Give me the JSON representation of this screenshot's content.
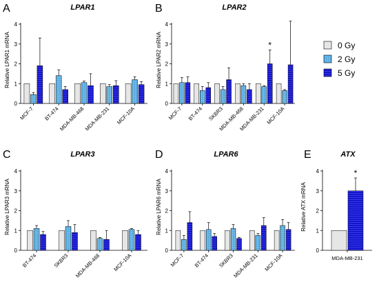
{
  "colors": {
    "c0": "#e6e6e6",
    "c2": "#5aaee2",
    "c5": "#1414c8",
    "axis": "#000000"
  },
  "legend": {
    "items": [
      {
        "label": "0 Gy",
        "color": "#e6e6e6"
      },
      {
        "label": "2 Gy",
        "color": "#5aaee2"
      },
      {
        "label": "5 Gy",
        "color": "#1414c8"
      }
    ]
  },
  "chart_data": [
    {
      "type": "bar",
      "letter": "A",
      "title": "LPAR1",
      "ylabel": "Relative LPAR1 mRNA",
      "ylim": [
        0,
        4
      ],
      "yticks": [
        0,
        1,
        2,
        3,
        4
      ],
      "categories": [
        "MCF-7",
        "BT-474",
        "MDA-MB-468",
        "MDA-MB-231",
        "MCF-10A"
      ],
      "series": [
        {
          "name": "0 Gy",
          "values": [
            1.0,
            1.0,
            1.0,
            1.0,
            1.0
          ],
          "errors": [
            0,
            0,
            0,
            0,
            0
          ]
        },
        {
          "name": "2 Gy",
          "values": [
            0.45,
            1.4,
            1.05,
            0.85,
            1.2
          ],
          "errors": [
            0.1,
            0.3,
            0.08,
            0.1,
            0.15
          ]
        },
        {
          "name": "5 Gy",
          "values": [
            1.9,
            0.7,
            0.9,
            0.9,
            0.95
          ],
          "errors": [
            1.4,
            0.15,
            0.6,
            0.25,
            0.15
          ]
        }
      ],
      "annotations": []
    },
    {
      "type": "bar",
      "letter": "B",
      "title": "LPAR2",
      "ylabel": "Relative LPAR2 mRNA",
      "ylim": [
        0,
        4
      ],
      "yticks": [
        0,
        1,
        2,
        3,
        4
      ],
      "categories": [
        "MCF-7",
        "BT-474",
        "SKBR3",
        "MDA-MB-468",
        "MDA-MB-231",
        "MCF-10A"
      ],
      "series": [
        {
          "name": "0 Gy",
          "values": [
            1.0,
            1.0,
            1.0,
            1.0,
            1.0,
            1.0
          ],
          "errors": [
            0,
            0,
            0,
            0,
            0,
            0
          ]
        },
        {
          "name": "2 Gy",
          "values": [
            1.05,
            0.65,
            0.7,
            0.9,
            0.85,
            0.65
          ],
          "errors": [
            0.25,
            0.2,
            0.15,
            0.1,
            0.05,
            0.05
          ]
        },
        {
          "name": "5 Gy",
          "values": [
            1.05,
            0.8,
            1.2,
            0.7,
            2.0,
            1.95
          ],
          "errors": [
            0.3,
            0.25,
            0.6,
            0.3,
            0.7,
            2.2
          ]
        }
      ],
      "annotations": [
        {
          "text": "*",
          "category": 4,
          "series": 2
        }
      ]
    },
    {
      "type": "bar",
      "letter": "C",
      "title": "LPAR3",
      "ylabel": "Relative LPAR3 mRNA",
      "ylim": [
        0,
        4
      ],
      "yticks": [
        0,
        1,
        2,
        3,
        4
      ],
      "categories": [
        "BT-474",
        "SKBR3",
        "MDA-MB-468",
        "MCF-10A"
      ],
      "series": [
        {
          "name": "0 Gy",
          "values": [
            1.0,
            1.0,
            1.0,
            1.0
          ],
          "errors": [
            0,
            0,
            0,
            0
          ]
        },
        {
          "name": "2 Gy",
          "values": [
            1.1,
            1.2,
            0.6,
            1.05
          ],
          "errors": [
            0.15,
            0.3,
            0.05,
            0.05
          ]
        },
        {
          "name": "5 Gy",
          "values": [
            0.8,
            0.9,
            0.55,
            0.8
          ],
          "errors": [
            0.15,
            0.4,
            0.45,
            0.2
          ]
        }
      ],
      "annotations": []
    },
    {
      "type": "bar",
      "letter": "D",
      "title": "LPAR6",
      "ylabel": "Relative LPAR6 mRNA",
      "ylim": [
        0,
        4
      ],
      "yticks": [
        0,
        1,
        2,
        3,
        4
      ],
      "categories": [
        "MCF-7",
        "BT-474",
        "SKBR3",
        "MDA-MB-231",
        "MCF-10A"
      ],
      "series": [
        {
          "name": "0 Gy",
          "values": [
            1.0,
            1.0,
            1.0,
            1.0,
            1.0
          ],
          "errors": [
            0,
            0,
            0,
            0,
            0
          ]
        },
        {
          "name": "2 Gy",
          "values": [
            0.55,
            1.05,
            1.1,
            0.75,
            1.25
          ],
          "errors": [
            0.2,
            0.35,
            0.2,
            0.1,
            0.3
          ]
        },
        {
          "name": "5 Gy",
          "values": [
            1.4,
            0.7,
            0.6,
            1.25,
            1.05
          ],
          "errors": [
            0.55,
            0.15,
            0.05,
            0.4,
            0.35
          ]
        }
      ],
      "annotations": []
    },
    {
      "type": "bar",
      "letter": "E",
      "title": "ATX",
      "ylabel": "Relative ATX mRNA",
      "ylim": [
        0,
        4
      ],
      "yticks": [
        0,
        1,
        2,
        3,
        4
      ],
      "categories": [
        "MDA-MB-231"
      ],
      "series": [
        {
          "name": "0 Gy",
          "values": [
            1.0
          ],
          "errors": [
            0
          ]
        },
        {
          "name": "5 Gy",
          "values": [
            3.0
          ],
          "errors": [
            0.65
          ]
        }
      ],
      "annotations": [
        {
          "text": "*",
          "category": 0,
          "series": 1
        }
      ]
    }
  ]
}
